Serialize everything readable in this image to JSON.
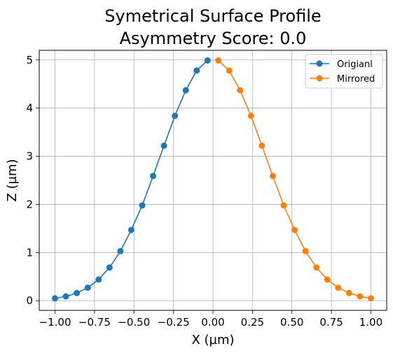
{
  "chart_data": {
    "type": "line",
    "title": [
      "Symetrical Surface Profile",
      "Asymmetry Score: 0.0"
    ],
    "xlabel": "X (µm)",
    "ylabel": "Z (µm)",
    "xlim": [
      -1.1,
      1.1
    ],
    "ylim": [
      -0.2,
      5.2
    ],
    "xticks": [
      -1.0,
      -0.75,
      -0.5,
      -0.25,
      0.0,
      0.25,
      0.5,
      0.75,
      1.0
    ],
    "xtick_labels": [
      "−1.00",
      "−0.75",
      "−0.50",
      "−0.25",
      "0.00",
      "0.25",
      "0.50",
      "0.75",
      "1.00"
    ],
    "yticks": [
      0,
      1,
      2,
      3,
      4,
      5
    ],
    "ytick_labels": [
      "0",
      "1",
      "2",
      "3",
      "4",
      "5"
    ],
    "grid": true,
    "legend": "top-right",
    "series": [
      {
        "name": "Origianl",
        "color": "#1f77b4",
        "x": [
          -1.0,
          -0.931,
          -0.862,
          -0.793,
          -0.724,
          -0.655,
          -0.586,
          -0.517,
          -0.448,
          -0.379,
          -0.31,
          -0.241,
          -0.172,
          -0.103,
          -0.034
        ],
        "y": [
          0.05,
          0.09,
          0.16,
          0.27,
          0.44,
          0.69,
          1.03,
          1.47,
          1.98,
          2.59,
          3.22,
          3.84,
          4.37,
          4.78,
          4.99
        ]
      },
      {
        "name": "Mirrored",
        "color": "#ff7f0e",
        "x": [
          0.034,
          0.103,
          0.172,
          0.241,
          0.31,
          0.379,
          0.448,
          0.517,
          0.586,
          0.655,
          0.724,
          0.793,
          0.862,
          0.931,
          1.0
        ],
        "y": [
          4.99,
          4.78,
          4.37,
          3.84,
          3.22,
          2.59,
          1.98,
          1.47,
          1.03,
          0.69,
          0.44,
          0.27,
          0.16,
          0.09,
          0.05
        ]
      }
    ]
  }
}
